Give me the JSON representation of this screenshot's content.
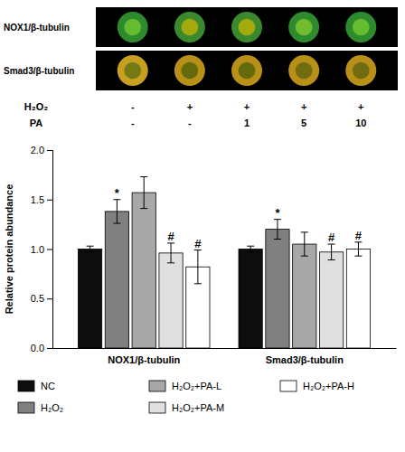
{
  "chart_data": {
    "type": "bar",
    "ylabel": "Relative protein abundance",
    "categories": [
      "NOX1/β-tubulin",
      "Smad3/β-tubulin"
    ],
    "series": [
      {
        "name": "NC",
        "color": "#0d0d0d",
        "values": [
          1.0,
          1.0
        ],
        "errors": [
          0.03,
          0.03
        ],
        "significance": [
          null,
          null
        ]
      },
      {
        "name": "H₂O₂",
        "color": "#808080",
        "values": [
          1.38,
          1.2
        ],
        "errors": [
          0.12,
          0.1
        ],
        "significance": [
          "*",
          "*"
        ]
      },
      {
        "name": "H₂O₂+PA-L",
        "color": "#a8a8a8",
        "values": [
          1.57,
          1.05
        ],
        "errors": [
          0.16,
          0.12
        ],
        "significance": [
          null,
          null
        ]
      },
      {
        "name": "H₂O₂+PA-M",
        "color": "#e0e0e0",
        "values": [
          0.96,
          0.97
        ],
        "errors": [
          0.1,
          0.08
        ],
        "significance": [
          "#",
          "#"
        ]
      },
      {
        "name": "H₂O₂+PA-H",
        "color": "#ffffff",
        "values": [
          0.82,
          1.0
        ],
        "errors": [
          0.17,
          0.07
        ],
        "significance": [
          "#",
          "#"
        ]
      }
    ],
    "ylim": [
      0.0,
      2.0
    ],
    "yticks": [
      {
        "value": 0.0,
        "label": "0.0"
      },
      0.5,
      {
        "value": 1.0,
        "label": "1.0"
      },
      1.5,
      {
        "value": 2.0,
        "label": "2.0"
      }
    ],
    "grid": false,
    "legend": "bottom",
    "treatments": [
      {
        "label": "H₂O₂",
        "values": [
          "-",
          "+",
          "+",
          "+",
          "+"
        ]
      },
      {
        "label": "PA",
        "values": [
          "-",
          "-",
          "1",
          "5",
          "10"
        ]
      }
    ],
    "blot": [
      {
        "label": "NOX1/β-tubulin",
        "outer_colors": [
          "#2d8a2d",
          "#3a8a2d",
          "#3a8a2d",
          "#2d8a2d",
          "#2d8a2d"
        ],
        "inner_colors": [
          "#7acc30",
          "#c8b400",
          "#c8b400",
          "#8acc30",
          "#7acc30"
        ]
      },
      {
        "label": "Smad3/β-tubulin",
        "outer_colors": [
          "#c8a020",
          "#b89018",
          "#b89018",
          "#b89018",
          "#b89018"
        ],
        "inner_colors": [
          "#5a6e10",
          "#4a5e08",
          "#4a5e08",
          "#5a6010",
          "#5a6010"
        ]
      }
    ]
  }
}
